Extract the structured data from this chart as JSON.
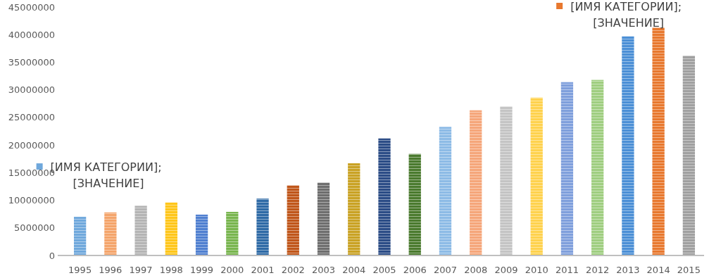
{
  "chart_data": {
    "type": "bar",
    "categories": [
      "1995",
      "1996",
      "1997",
      "1998",
      "1999",
      "2000",
      "2001",
      "2002",
      "2003",
      "2004",
      "2005",
      "2006",
      "2007",
      "2008",
      "2009",
      "2010",
      "2011",
      "2012",
      "2013",
      "2014",
      "2015"
    ],
    "values": [
      7000000,
      7800000,
      9000000,
      9600000,
      7400000,
      7900000,
      10300000,
      12700000,
      13200000,
      16700000,
      21200000,
      18400000,
      23300000,
      26300000,
      27000000,
      28600000,
      31400000,
      31800000,
      39700000,
      41300000,
      36200000
    ],
    "colors": [
      "#6fa8dc",
      "#f4a46a",
      "#b4b4b4",
      "#ffc61a",
      "#4f7fd0",
      "#78b54e",
      "#2e6aa6",
      "#c0561a",
      "#6e6e6e",
      "#c9a224",
      "#2b4c86",
      "#4a7a2e",
      "#8dbbe6",
      "#f5a67a",
      "#c4c4c4",
      "#ffd24d",
      "#7f9fdc",
      "#9fce80",
      "#4b8fd6",
      "#e8782e",
      "#a0a0a0"
    ],
    "ylim": [
      0,
      45000000
    ],
    "yticks": [
      0,
      5000000,
      10000000,
      15000000,
      20000000,
      25000000,
      30000000,
      35000000,
      40000000,
      45000000
    ],
    "grid": false,
    "annotations": [
      {
        "text": "[ИМЯ КАТЕГОРИИ];\n[ЗНАЧЕНИЕ]",
        "x": "1995",
        "y": 7000000
      },
      {
        "text": "[ИМЯ КАТЕГОРИИ];\n[ЗНАЧЕНИЕ]",
        "x": "2014",
        "y": 41300000
      }
    ]
  }
}
